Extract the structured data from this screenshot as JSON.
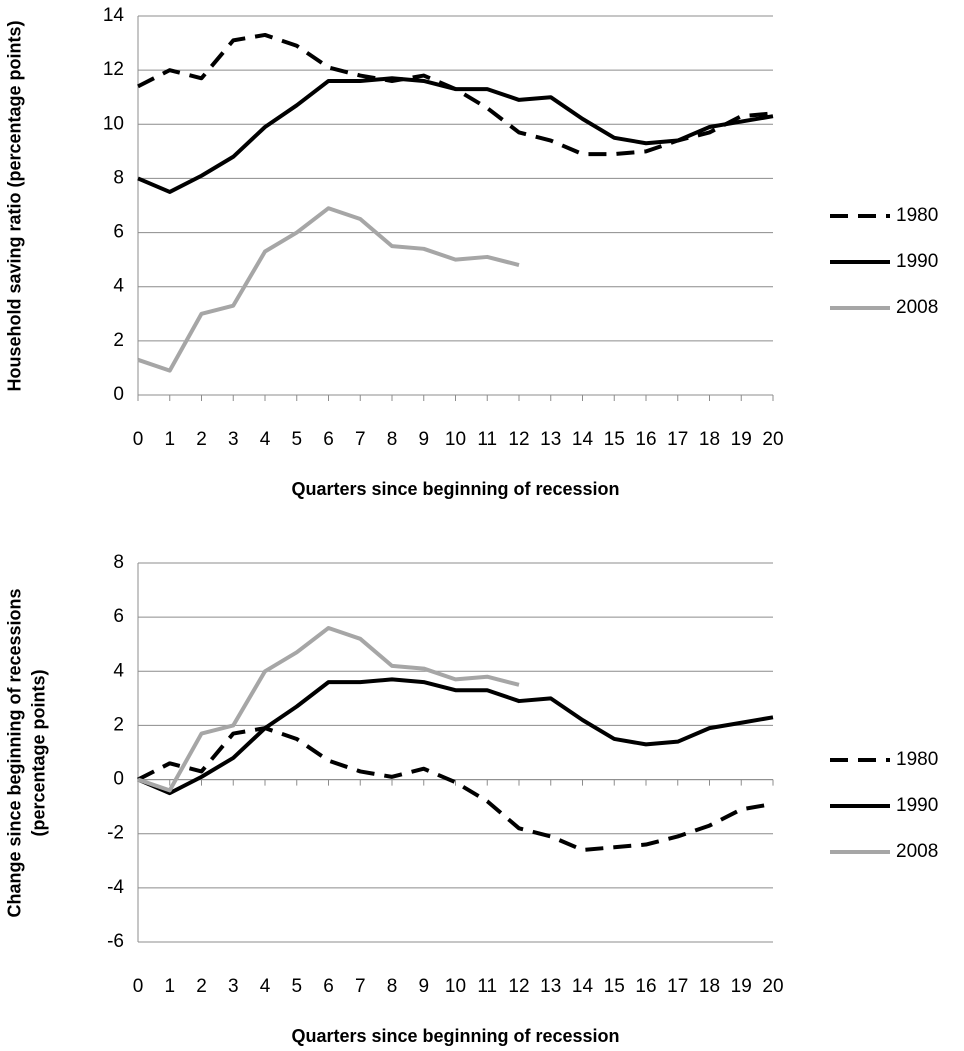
{
  "chart_data": [
    {
      "type": "line",
      "ylabel": "Household saving ratio (percentage points)",
      "xlabel": "Quarters since beginning of recession",
      "x": [
        0,
        1,
        2,
        3,
        4,
        5,
        6,
        7,
        8,
        9,
        10,
        11,
        12,
        13,
        14,
        15,
        16,
        17,
        18,
        19,
        20
      ],
      "xlim": [
        0,
        20
      ],
      "xticks": [
        0,
        1,
        2,
        3,
        4,
        5,
        6,
        7,
        8,
        9,
        10,
        11,
        12,
        13,
        14,
        15,
        16,
        17,
        18,
        19,
        20
      ],
      "ylim": [
        0,
        14
      ],
      "yticks": [
        0,
        2,
        4,
        6,
        8,
        10,
        12,
        14
      ],
      "grid": true,
      "legend": "right",
      "series": [
        {
          "name": "1980",
          "color": "#000000",
          "style": "dashed",
          "values": [
            11.4,
            12.0,
            11.7,
            13.1,
            13.3,
            12.9,
            12.1,
            11.8,
            11.6,
            11.8,
            11.3,
            10.6,
            9.7,
            9.4,
            8.9,
            8.9,
            9.0,
            9.4,
            9.7,
            10.3,
            10.4
          ]
        },
        {
          "name": "1990",
          "color": "#000000",
          "style": "solid",
          "values": [
            8.0,
            7.5,
            8.1,
            8.8,
            9.9,
            10.7,
            11.6,
            11.6,
            11.7,
            11.6,
            11.3,
            11.3,
            10.9,
            11.0,
            10.2,
            9.5,
            9.3,
            9.4,
            9.9,
            10.1,
            10.3
          ]
        },
        {
          "name": "2008",
          "color": "#a6a6a6",
          "style": "solid",
          "values": [
            1.3,
            0.9,
            3.0,
            3.3,
            5.3,
            6.0,
            6.9,
            6.5,
            5.5,
            5.4,
            5.0,
            5.1,
            4.8,
            null,
            null,
            null,
            null,
            null,
            null,
            null,
            null
          ]
        }
      ]
    },
    {
      "type": "line",
      "ylabel": "Change since beginning of recessions (percentage points)",
      "xlabel": "Quarters since beginning of recession",
      "x": [
        0,
        1,
        2,
        3,
        4,
        5,
        6,
        7,
        8,
        9,
        10,
        11,
        12,
        13,
        14,
        15,
        16,
        17,
        18,
        19,
        20
      ],
      "xlim": [
        0,
        20
      ],
      "xticks": [
        0,
        1,
        2,
        3,
        4,
        5,
        6,
        7,
        8,
        9,
        10,
        11,
        12,
        13,
        14,
        15,
        16,
        17,
        18,
        19,
        20
      ],
      "ylim": [
        -6,
        8
      ],
      "yticks": [
        -6,
        -4,
        -2,
        0,
        2,
        4,
        6,
        8
      ],
      "grid": true,
      "legend": "right",
      "series": [
        {
          "name": "1980",
          "color": "#000000",
          "style": "dashed",
          "values": [
            0,
            0.6,
            0.3,
            1.7,
            1.9,
            1.5,
            0.7,
            0.3,
            0.1,
            0.4,
            -0.1,
            -0.8,
            -1.8,
            -2.1,
            -2.6,
            -2.5,
            -2.4,
            -2.1,
            -1.7,
            -1.1,
            -0.9
          ]
        },
        {
          "name": "1990",
          "color": "#000000",
          "style": "solid",
          "values": [
            0,
            -0.5,
            0.1,
            0.8,
            1.9,
            2.7,
            3.6,
            3.6,
            3.7,
            3.6,
            3.3,
            3.3,
            2.9,
            3.0,
            2.2,
            1.5,
            1.3,
            1.4,
            1.9,
            2.1,
            2.3
          ]
        },
        {
          "name": "2008",
          "color": "#a6a6a6",
          "style": "solid",
          "values": [
            0,
            -0.4,
            1.7,
            2.0,
            4.0,
            4.7,
            5.6,
            5.2,
            4.2,
            4.1,
            3.7,
            3.8,
            3.5,
            null,
            null,
            null,
            null,
            null,
            null,
            null,
            null
          ]
        }
      ]
    }
  ]
}
